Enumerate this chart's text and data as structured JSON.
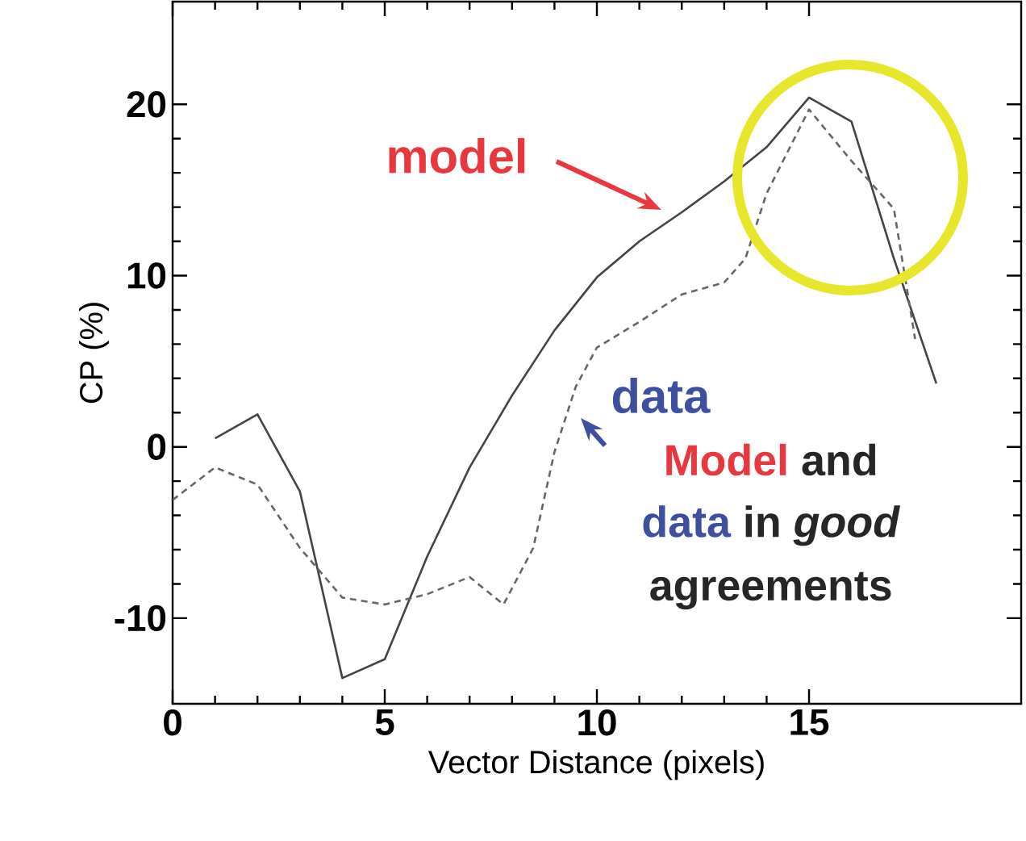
{
  "chart_data": {
    "type": "line",
    "xlabel": "Vector Distance (pixels)",
    "ylabel": "CP (%)",
    "xlim": [
      0,
      20
    ],
    "ylim": [
      -15,
      26
    ],
    "xticks": [
      0,
      5,
      10,
      15
    ],
    "yticks": [
      -10,
      0,
      10,
      20
    ],
    "marker": "none",
    "series": [
      {
        "name": "model",
        "color": "#444444",
        "line_style": "solid",
        "x": [
          1,
          2,
          3,
          4,
          5,
          6,
          7,
          8,
          9,
          10,
          11,
          12,
          13,
          14,
          15,
          16,
          17,
          18
        ],
        "values": [
          0.5,
          1.9,
          -2.6,
          -13.5,
          -12.4,
          -6.4,
          -1.2,
          3,
          6.8,
          9.9,
          12,
          13.7,
          15.5,
          17.5,
          20.4,
          19,
          11,
          3.7
        ]
      },
      {
        "name": "data",
        "color": "#666666",
        "line_style": "dashed",
        "x": [
          0,
          1,
          2,
          3,
          4,
          5,
          6,
          7,
          7.8,
          8.5,
          9,
          9.5,
          10,
          11,
          12,
          13,
          13.5,
          14,
          15,
          16,
          17,
          17.5
        ],
        "values": [
          -3.1,
          -1.2,
          -2.2,
          -5.9,
          -8.8,
          -9.2,
          -8.6,
          -7.6,
          -9.2,
          -5.9,
          -0.3,
          3.5,
          5.8,
          7.3,
          8.9,
          9.6,
          11,
          14.8,
          19.7,
          16.7,
          13.9,
          6.3
        ]
      }
    ],
    "annotations": [
      "Model",
      "and",
      "data",
      "in *good*",
      "agreements"
    ]
  }
}
